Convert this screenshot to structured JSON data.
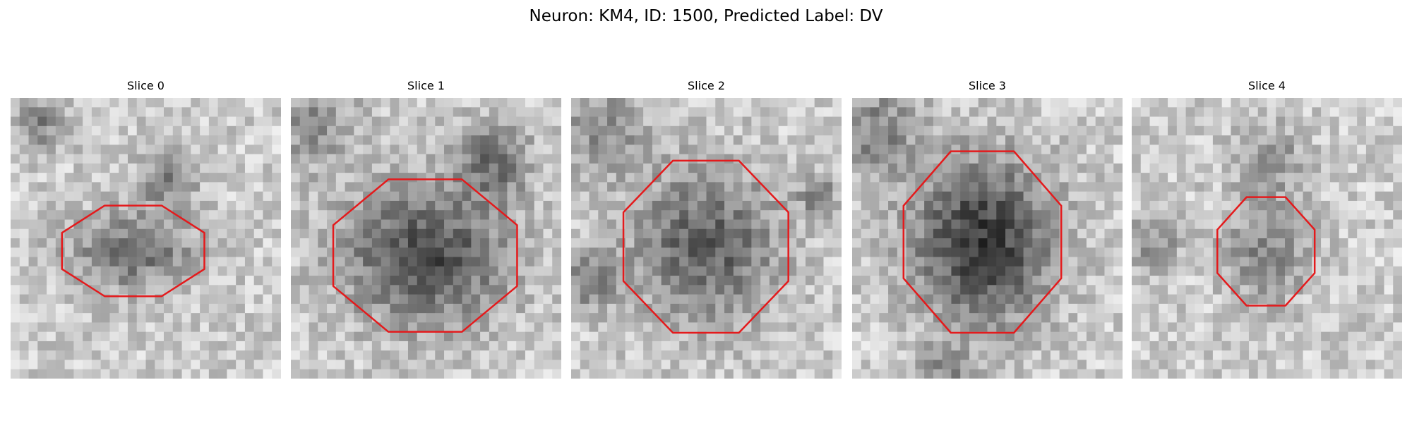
{
  "figure": {
    "title": "Neuron: KM4, ID: 1500, Predicted Label: DV",
    "panels": [
      {
        "title": "Slice 0"
      },
      {
        "title": "Slice 1"
      },
      {
        "title": "Slice 2"
      },
      {
        "title": "Slice 3"
      },
      {
        "title": "Slice 4"
      }
    ]
  }
}
